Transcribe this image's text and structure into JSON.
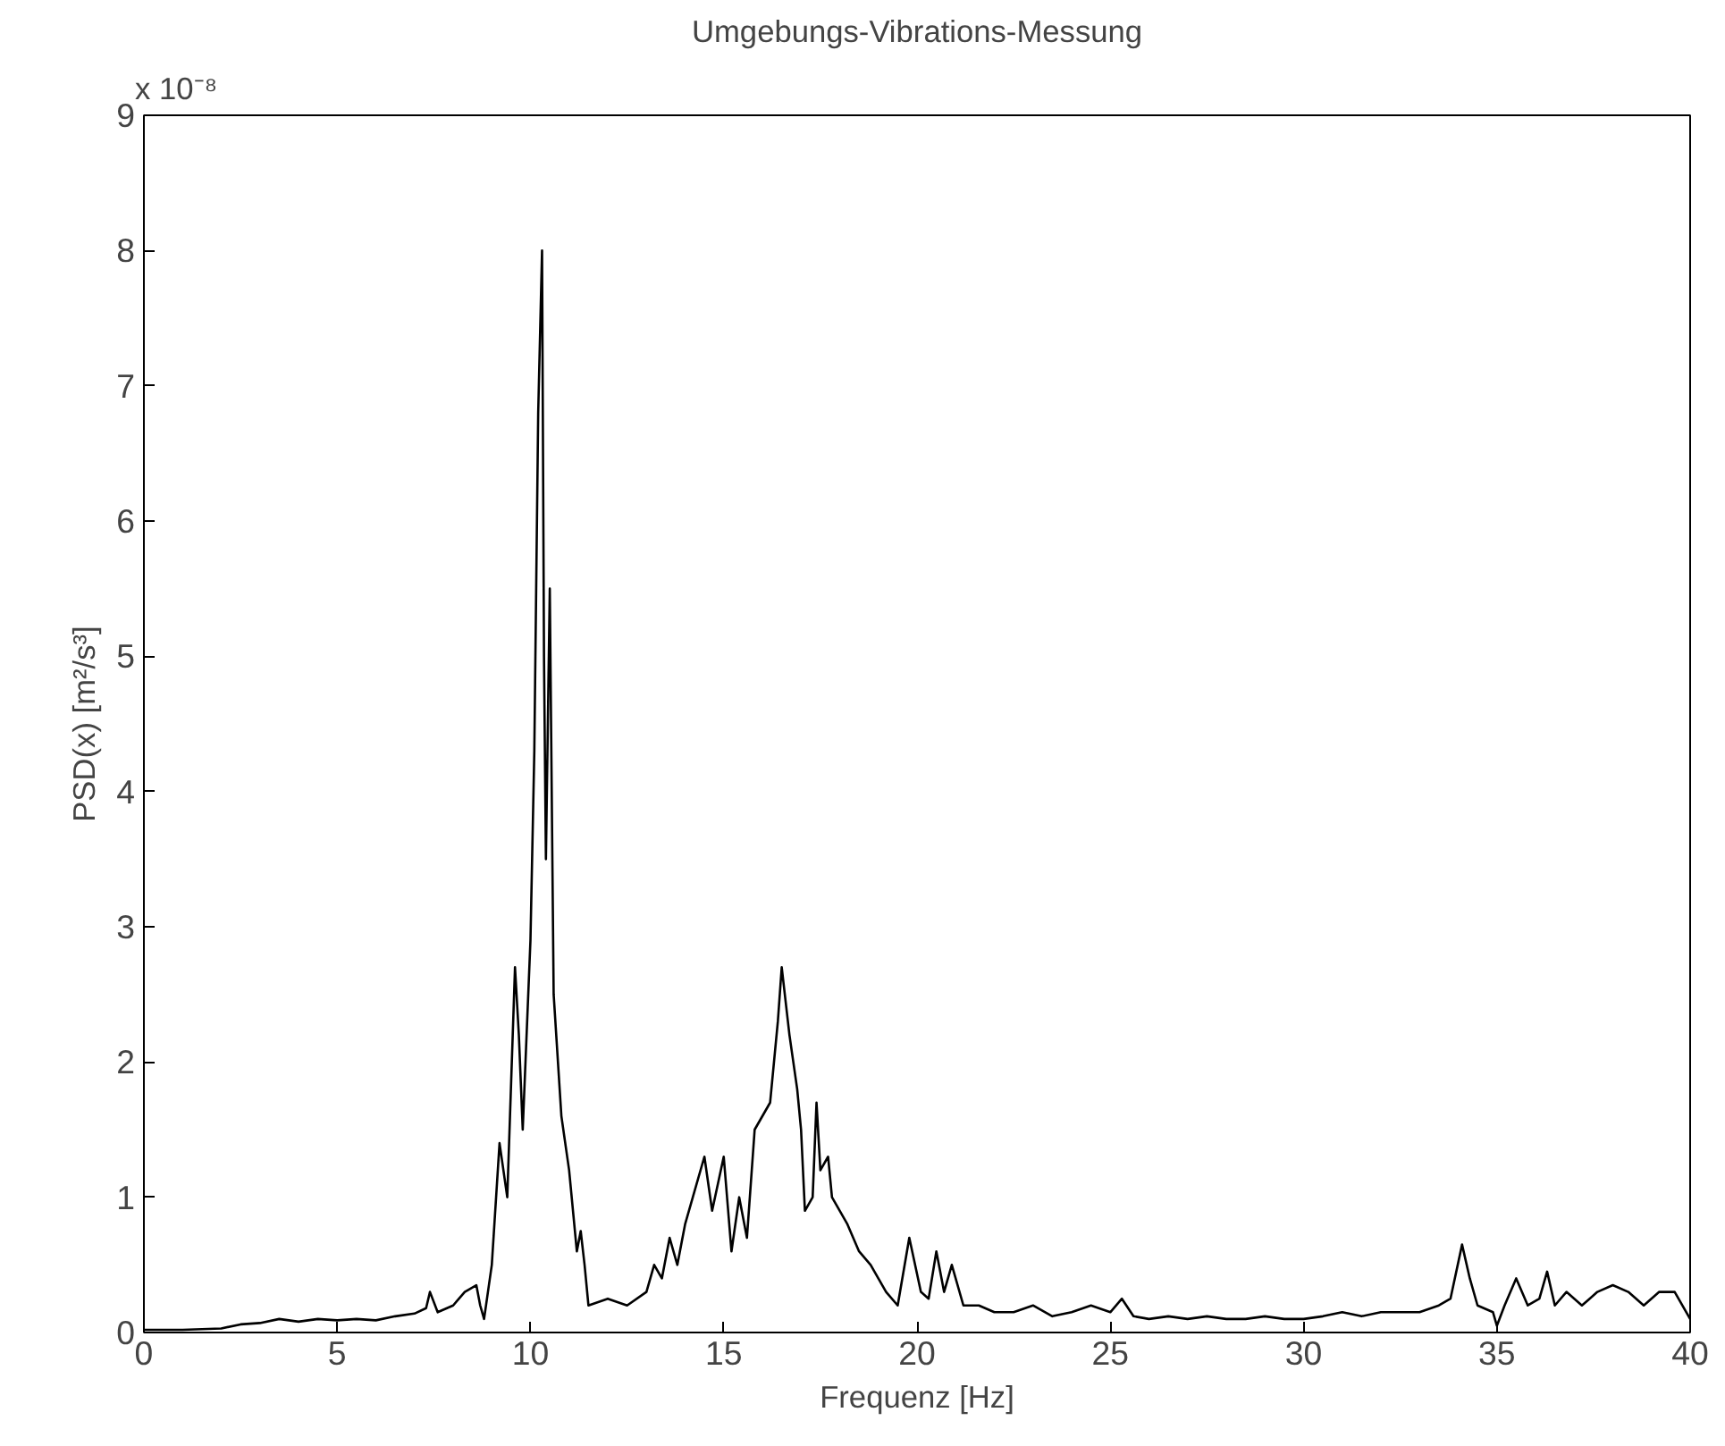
{
  "chart_data": {
    "type": "line",
    "title": "Umgebungs-Vibrations-Messung",
    "xlabel": "Frequenz [Hz]",
    "ylabel": "PSD(x) [m²/s³]",
    "annotations": [
      "x 10⁻⁸"
    ],
    "xlim": [
      0,
      40
    ],
    "ylim": [
      0,
      9
    ],
    "xticks": [
      0,
      5,
      10,
      15,
      20,
      25,
      30,
      35,
      40
    ],
    "yticks": [
      0,
      1,
      2,
      3,
      4,
      5,
      6,
      7,
      8,
      9
    ],
    "grid": false,
    "series": [
      {
        "color": "#000000",
        "x": [
          0,
          1,
          2,
          2.5,
          3,
          3.5,
          4,
          4.5,
          5,
          5.5,
          6,
          6.5,
          7,
          7.3,
          7.4,
          7.6,
          8,
          8.3,
          8.6,
          8.7,
          8.8,
          9.0,
          9.2,
          9.3,
          9.4,
          9.6,
          9.7,
          9.8,
          10.0,
          10.1,
          10.2,
          10.3,
          10.35,
          10.4,
          10.5,
          10.6,
          10.8,
          11.0,
          11.2,
          11.3,
          11.4,
          11.5,
          12,
          12.5,
          13,
          13.2,
          13.4,
          13.6,
          13.8,
          14,
          14.2,
          14.5,
          14.7,
          15,
          15.2,
          15.4,
          15.6,
          15.8,
          16.2,
          16.4,
          16.5,
          16.7,
          16.9,
          17,
          17.1,
          17.3,
          17.4,
          17.5,
          17.7,
          17.8,
          18.2,
          18.5,
          18.8,
          19.2,
          19.5,
          19.8,
          20.1,
          20.3,
          20.5,
          20.7,
          20.9,
          21.2,
          21.6,
          22,
          22.5,
          23,
          23.5,
          24,
          24.5,
          25,
          25.3,
          25.6,
          26,
          26.5,
          27,
          27.5,
          28,
          28.5,
          29,
          29.5,
          30,
          30.5,
          31,
          31.5,
          32,
          32.5,
          33,
          33.5,
          33.8,
          34.1,
          34.3,
          34.5,
          34.9,
          35.0,
          35.2,
          35.5,
          35.8,
          36.1,
          36.3,
          36.5,
          36.8,
          37.2,
          37.6,
          38.0,
          38.4,
          38.8,
          39.2,
          39.6,
          40
        ],
        "values": [
          0.02,
          0.02,
          0.03,
          0.06,
          0.07,
          0.1,
          0.08,
          0.1,
          0.09,
          0.1,
          0.09,
          0.12,
          0.14,
          0.18,
          0.3,
          0.15,
          0.2,
          0.3,
          0.35,
          0.2,
          0.1,
          0.5,
          1.4,
          1.2,
          1.0,
          2.7,
          2.2,
          1.5,
          2.9,
          4.3,
          6.8,
          8.0,
          5.0,
          3.5,
          5.5,
          2.5,
          1.6,
          1.2,
          0.6,
          0.75,
          0.5,
          0.2,
          0.25,
          0.2,
          0.3,
          0.5,
          0.4,
          0.7,
          0.5,
          0.8,
          1.0,
          1.3,
          0.9,
          1.3,
          0.6,
          1.0,
          0.7,
          1.5,
          1.7,
          2.3,
          2.7,
          2.2,
          1.8,
          1.5,
          0.9,
          1.0,
          1.7,
          1.2,
          1.3,
          1.0,
          0.8,
          0.6,
          0.5,
          0.3,
          0.2,
          0.7,
          0.3,
          0.25,
          0.6,
          0.3,
          0.5,
          0.2,
          0.2,
          0.15,
          0.15,
          0.2,
          0.12,
          0.15,
          0.2,
          0.15,
          0.25,
          0.12,
          0.1,
          0.12,
          0.1,
          0.12,
          0.1,
          0.1,
          0.12,
          0.1,
          0.1,
          0.12,
          0.15,
          0.12,
          0.15,
          0.15,
          0.15,
          0.2,
          0.25,
          0.65,
          0.4,
          0.2,
          0.15,
          0.05,
          0.2,
          0.4,
          0.2,
          0.25,
          0.45,
          0.2,
          0.3,
          0.2,
          0.3,
          0.35,
          0.3,
          0.2,
          0.3,
          0.3,
          0.1
        ]
      }
    ]
  }
}
